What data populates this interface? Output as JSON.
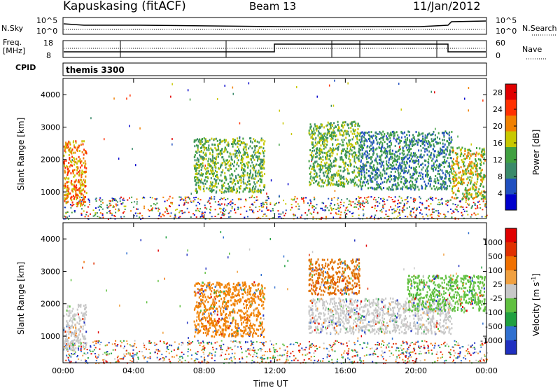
{
  "header": {
    "radar": "Kapuskasing (fitACF)",
    "beam": "Beam 13",
    "date": "11/Jan/2012"
  },
  "top_panels": {
    "nsky_label": "N.Sky",
    "nsky_ticks": [
      "10^5",
      "10^0"
    ],
    "nsearch_label": "N.Search",
    "nsearch_ticks": [
      "10^5",
      "10^0"
    ],
    "freq_label_1": "Freq.",
    "freq_label_2": "[MHz]",
    "freq_ticks": [
      "18",
      "8"
    ],
    "nave_label": "Nave",
    "nave_ticks": [
      "60",
      "0"
    ],
    "cpid_label": "CPID",
    "cpid_value": "themis 3300"
  },
  "chart_data": [
    {
      "type": "heatmap",
      "title": "",
      "xlabel": "",
      "ylabel": "Slant Range [km]",
      "x_ticks": [
        "00:00",
        "04:00",
        "08:00",
        "12:00",
        "16:00",
        "20:00",
        "00:00"
      ],
      "xlim_hours": [
        0,
        24
      ],
      "y_ticks": [
        1000,
        2000,
        3000,
        4000
      ],
      "ylim": [
        180,
        4500
      ],
      "colorbar": {
        "label": "Power [dB]",
        "ticks": [
          "4",
          "8",
          "12",
          "16",
          "20",
          "24",
          "28"
        ],
        "range": [
          0,
          30
        ],
        "colors": [
          "#0000cc",
          "#2050c0",
          "#3a8a6a",
          "#40a040",
          "#c8c800",
          "#f08000",
          "#ff3000",
          "#e00000"
        ]
      },
      "echo_regions": [
        {
          "t0": 0.0,
          "t1": 1.3,
          "r0": 600,
          "r1": 2600,
          "level": 5
        },
        {
          "t0": 7.4,
          "t1": 11.4,
          "r0": 1000,
          "r1": 2700,
          "level": 3
        },
        {
          "t0": 13.9,
          "t1": 16.8,
          "r0": 1200,
          "r1": 3200,
          "level": 3
        },
        {
          "t0": 16.8,
          "t1": 22.0,
          "r0": 1100,
          "r1": 2900,
          "level": 2
        },
        {
          "t0": 22.0,
          "t1": 23.9,
          "r0": 800,
          "r1": 2400,
          "level": 4
        }
      ]
    },
    {
      "type": "heatmap",
      "title": "",
      "xlabel": "Time UT",
      "ylabel": "Slant Range [km]",
      "x_ticks": [
        "00:00",
        "04:00",
        "08:00",
        "12:00",
        "16:00",
        "20:00",
        "00:00"
      ],
      "xlim_hours": [
        0,
        24
      ],
      "y_ticks": [
        1000,
        2000,
        3000,
        4000
      ],
      "ylim": [
        180,
        4500
      ],
      "colorbar": {
        "label": "Velocity [m s^-1]",
        "ticks": [
          "1000",
          "500",
          "100",
          "25",
          "-25",
          "-100",
          "-500",
          "-1000"
        ],
        "colors": [
          "#2030c0",
          "#3070d0",
          "#20a040",
          "#60c040",
          "#c8c8c8",
          "#f0a040",
          "#f07000",
          "#e03000",
          "#e00000"
        ]
      },
      "echo_regions": [
        {
          "t0": 0.0,
          "t1": 1.3,
          "r0": 600,
          "r1": 2000,
          "color": "#c8c8c8"
        },
        {
          "t0": 7.4,
          "t1": 11.4,
          "r0": 1000,
          "r1": 2700,
          "color": "#f08000"
        },
        {
          "t0": 13.9,
          "t1": 16.8,
          "r0": 2300,
          "r1": 3400,
          "color": "#e07000"
        },
        {
          "t0": 13.9,
          "t1": 22.0,
          "r0": 1100,
          "r1": 2200,
          "color": "#c8c8c8"
        },
        {
          "t0": 19.5,
          "t1": 23.9,
          "r0": 1800,
          "r1": 2900,
          "color": "#60c040"
        }
      ]
    }
  ]
}
